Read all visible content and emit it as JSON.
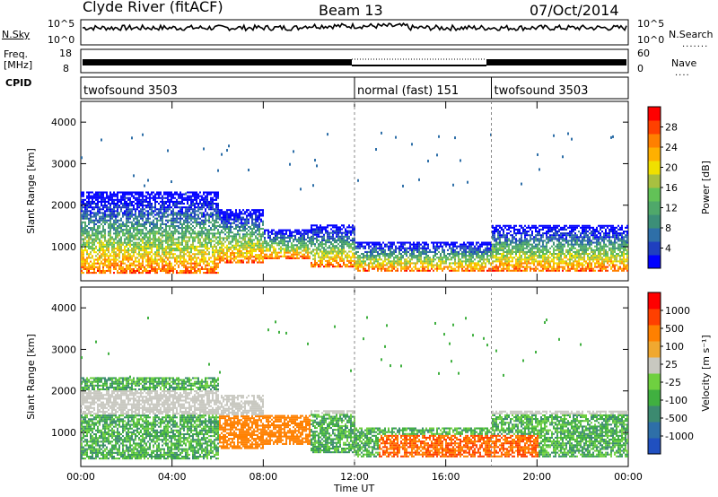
{
  "header": {
    "station": "Clyde River (fitACF)",
    "beam": "Beam 13",
    "date": "07/Oct/2014"
  },
  "left_labels": {
    "nsky": "N.Sky",
    "freq_line1": "Freq.",
    "freq_line2": "[MHz]",
    "cpid": "CPID"
  },
  "right_labels": {
    "nsearch": "N.Search",
    "nave": "Nave"
  },
  "noise_axis": {
    "left_top": "10^5",
    "left_bot": "10^0",
    "right_top": "10^5",
    "right_bot": "10^0"
  },
  "freq_axis": {
    "left_top": "18",
    "left_bot": "8",
    "right_top": "60",
    "right_bot": "0"
  },
  "cpid_segments": [
    {
      "label": "twofsound 3503",
      "start_hour": 0,
      "end_hour": 12
    },
    {
      "label": "normal (fast) 151",
      "start_hour": 12,
      "end_hour": 18
    },
    {
      "label": "twofsound 3503",
      "start_hour": 18,
      "end_hour": 24
    }
  ],
  "chart_data": [
    {
      "type": "heatmap",
      "panel": "power",
      "xlabel": "Time UT",
      "ylabel": "Slant Range [km]",
      "x_ticks": [
        "00:00",
        "04:00",
        "08:00",
        "12:00",
        "16:00",
        "20:00",
        "00:00"
      ],
      "xlim_hours": [
        0,
        24
      ],
      "y_ticks": [
        1000,
        2000,
        3000,
        4000
      ],
      "ylim": [
        180,
        4500
      ],
      "colorbar": {
        "label": "Power [dB]",
        "ticks": [
          "28",
          "24",
          "20",
          "16",
          "12",
          "8",
          "4"
        ],
        "colors": [
          "#0000ff",
          "#1f3fbf",
          "#2e6fa8",
          "#3c8f78",
          "#4fa86a",
          "#62c257",
          "#a8c040",
          "#f0e000",
          "#ffb000",
          "#ff8000",
          "#ff4000",
          "#ff0000"
        ]
      }
    },
    {
      "type": "heatmap",
      "panel": "velocity",
      "xlabel": "Time UT",
      "ylabel": "Slant Range [km]",
      "x_ticks": [
        "00:00",
        "04:00",
        "08:00",
        "12:00",
        "16:00",
        "20:00",
        "00:00"
      ],
      "xlim_hours": [
        0,
        24
      ],
      "y_ticks": [
        1000,
        2000,
        3000,
        4000
      ],
      "ylim": [
        180,
        4500
      ],
      "colorbar": {
        "label": "Velocity [m s⁻¹]",
        "ticks": [
          "1000",
          "500",
          "100",
          "25",
          "-25",
          "-100",
          "-500",
          "-1000"
        ],
        "colors": [
          "#2050c0",
          "#2e6fa8",
          "#3c8a70",
          "#40b040",
          "#6fd040",
          "#c8c8c0",
          "#f0a830",
          "#ff8000",
          "#ff4000",
          "#ff0000"
        ]
      }
    }
  ],
  "time_axis_label": "Time UT"
}
